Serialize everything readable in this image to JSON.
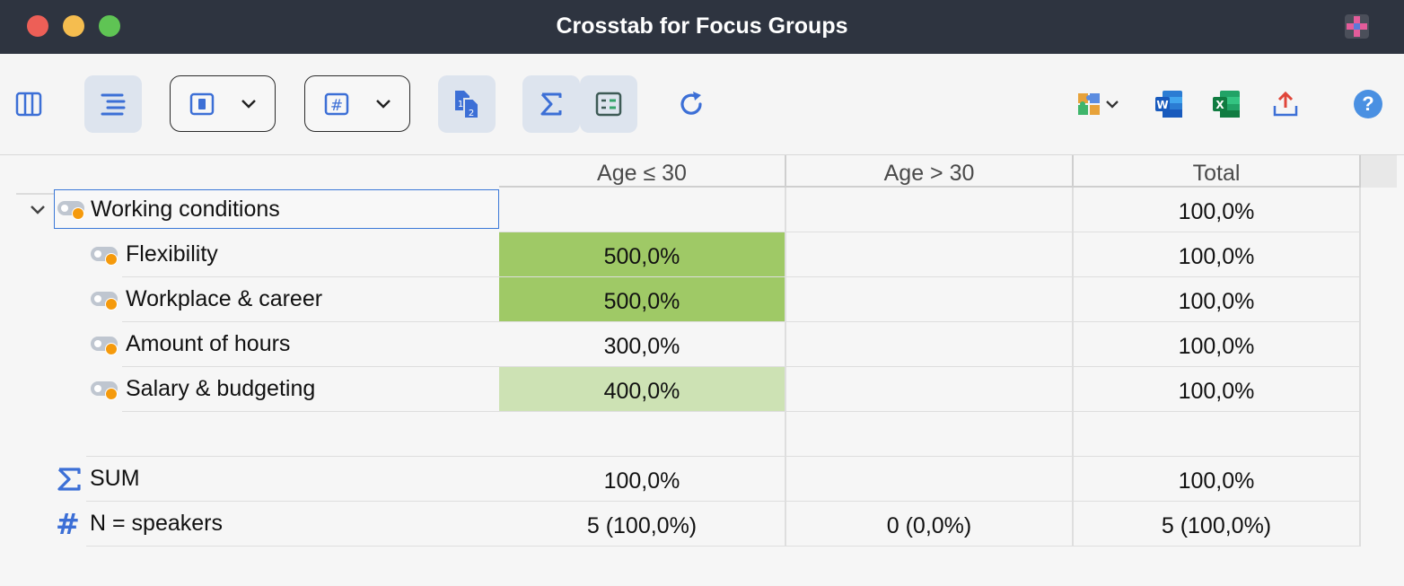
{
  "window": {
    "title": "Crosstab for Focus Groups"
  },
  "toolbar": {
    "icons": [
      "sidebar-icon",
      "tree-icon",
      "panel-dropdown",
      "hash-dropdown",
      "numbered-docs-icon",
      "sum-icon",
      "compact-view-icon",
      "refresh-icon",
      "puzzle-icon",
      "word-icon",
      "excel-icon",
      "export-icon",
      "help-icon"
    ],
    "help_label": "?"
  },
  "table": {
    "columns": [
      "Age ≤ 30",
      "Age > 30",
      "Total"
    ],
    "rows": [
      {
        "label": "Working conditions",
        "kind": "parent",
        "values": [
          "",
          "",
          "100,0%"
        ],
        "highlight": [
          "",
          "",
          ""
        ]
      },
      {
        "label": "Flexibility",
        "kind": "child",
        "values": [
          "500,0%",
          "",
          "100,0%"
        ],
        "highlight": [
          "#9fc966",
          "",
          ""
        ]
      },
      {
        "label": "Workplace & career",
        "kind": "child",
        "values": [
          "500,0%",
          "",
          "100,0%"
        ],
        "highlight": [
          "#9fc966",
          "",
          ""
        ]
      },
      {
        "label": "Amount of hours",
        "kind": "child",
        "values": [
          "300,0%",
          "",
          "100,0%"
        ],
        "highlight": [
          "",
          "",
          ""
        ]
      },
      {
        "label": "Salary & budgeting",
        "kind": "child",
        "values": [
          "400,0%",
          "",
          "100,0%"
        ],
        "highlight": [
          "#cde2b4",
          "",
          ""
        ]
      },
      {
        "label": "",
        "kind": "blank",
        "values": [
          "",
          "",
          ""
        ],
        "highlight": [
          "",
          "",
          ""
        ]
      },
      {
        "label": "SUM",
        "kind": "sum",
        "values": [
          "100,0%",
          "",
          "100,0%"
        ],
        "highlight": [
          "",
          "",
          ""
        ]
      },
      {
        "label": "N = speakers",
        "kind": "n",
        "values": [
          "5 (100,0%)",
          "0 (0,0%)",
          "5 (100,0%)"
        ],
        "highlight": [
          "",
          "",
          ""
        ]
      }
    ]
  },
  "colors": {
    "accent": "#3b82f6",
    "code_dot": "#f59a0c",
    "high": "#9fc966",
    "medium": "#cde2b4"
  }
}
